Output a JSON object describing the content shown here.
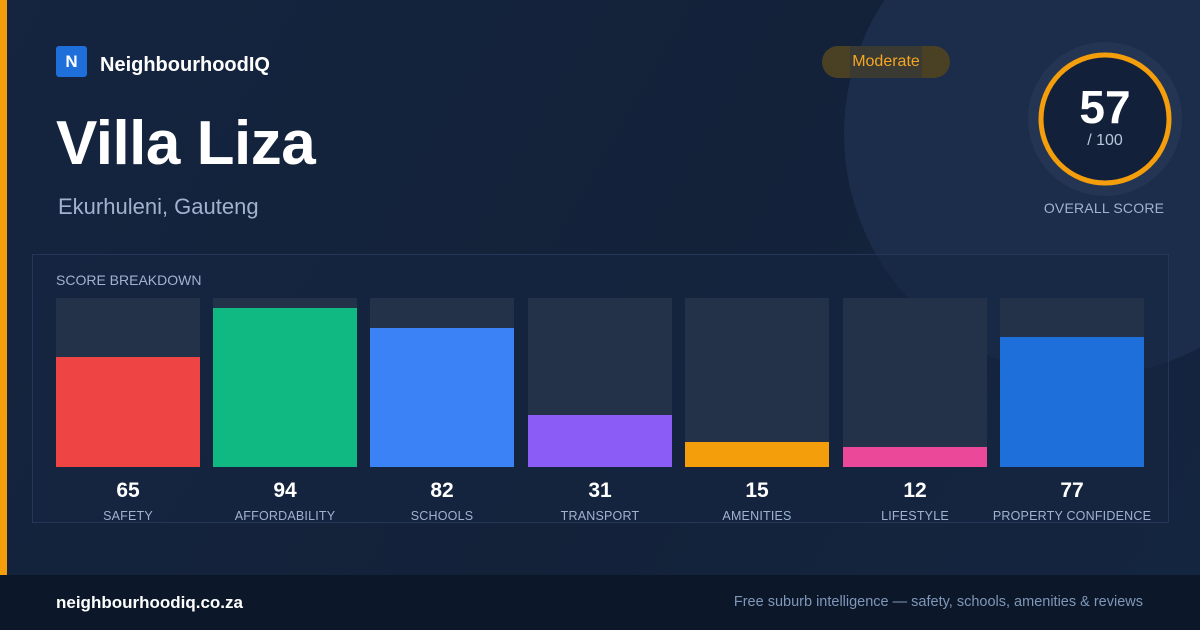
{
  "brand": {
    "logo_letter": "N",
    "name": "NeighbourhoodIQ",
    "accent_color": "#f59e0b"
  },
  "suburb": {
    "name": "Villa Liza",
    "location": "Ekurhuleni, Gauteng"
  },
  "rating": {
    "label": "Moderate",
    "color": "#f5a623"
  },
  "overall": {
    "score": "57",
    "max_text": "/ 100",
    "max": 100,
    "label": "OVERALL SCORE",
    "ring_color": "#f59e0b"
  },
  "breakdown": {
    "title": "SCORE BREAKDOWN",
    "items": [
      {
        "label": "SAFETY",
        "value": 65,
        "color": "#ef4444"
      },
      {
        "label": "AFFORDABILITY",
        "value": 94,
        "color": "#10b981"
      },
      {
        "label": "SCHOOLS",
        "value": 82,
        "color": "#3b82f6"
      },
      {
        "label": "TRANSPORT",
        "value": 31,
        "color": "#8b5cf6"
      },
      {
        "label": "AMENITIES",
        "value": 15,
        "color": "#f59e0b"
      },
      {
        "label": "LIFESTYLE",
        "value": 12,
        "color": "#ec4899"
      },
      {
        "label": "PROPERTY CONFIDENCE",
        "value": 77,
        "color": "#1e6fd9"
      }
    ]
  },
  "footer": {
    "url": "neighbourhoodiq.co.za",
    "tagline": "Free suburb intelligence — safety, schools, amenities & reviews"
  }
}
